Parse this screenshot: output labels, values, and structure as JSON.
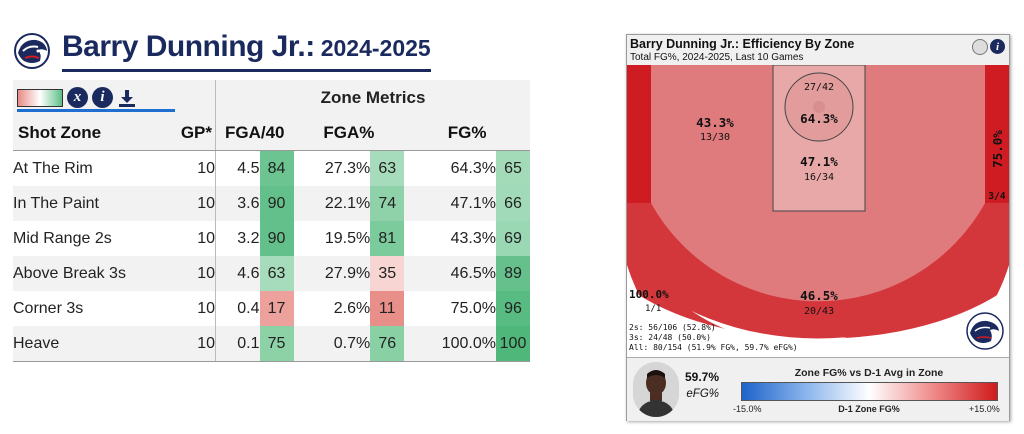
{
  "header": {
    "player_name": "Barry Dunning Jr.:",
    "season": "2024-2025"
  },
  "table": {
    "tools": {
      "stat_icon": "x",
      "info_icon": "i"
    },
    "zone_metrics_label": "Zone Metrics",
    "columns": {
      "zone": "Shot Zone",
      "gp": "GP*",
      "fga40": "FGA/40",
      "fgapct": "FGA%",
      "fgpct": "FG%"
    },
    "rows": [
      {
        "zone": "At The Rim",
        "gp": "10",
        "fga40": "4.5",
        "fga40_pct": "84",
        "fgapct": "27.3%",
        "fgapct_pct": "63",
        "fgpct": "64.3%",
        "fgpct_pct": "65",
        "c1": "#6cc491",
        "c2": "#a6dcbb",
        "c3": "#a3dbb9"
      },
      {
        "zone": "In The Paint",
        "gp": "10",
        "fga40": "3.6",
        "fga40_pct": "90",
        "fgapct": "22.1%",
        "fgapct_pct": "74",
        "fgpct": "47.1%",
        "fgpct_pct": "66",
        "c1": "#64c08b",
        "c2": "#8fd2a9",
        "c3": "#a1dab8"
      },
      {
        "zone": "Mid Range 2s",
        "gp": "10",
        "fga40": "3.2",
        "fga40_pct": "90",
        "fgapct": "19.5%",
        "fgapct_pct": "81",
        "fgpct": "43.3%",
        "fgpct_pct": "69",
        "c1": "#64c08b",
        "c2": "#7ccb9c",
        "c3": "#9ad7b3"
      },
      {
        "zone": "Above Break 3s",
        "gp": "10",
        "fga40": "4.6",
        "fga40_pct": "63",
        "fgapct": "27.9%",
        "fgapct_pct": "35",
        "fgpct": "46.5%",
        "fgpct_pct": "89",
        "c1": "#a6dcbb",
        "c2": "#f6d5d3",
        "c3": "#66c08c"
      },
      {
        "zone": "Corner 3s",
        "gp": "10",
        "fga40": "0.4",
        "fga40_pct": "17",
        "fgapct": "2.6%",
        "fgapct_pct": "11",
        "fgpct": "75.0%",
        "fgpct_pct": "96",
        "c1": "#eca19c",
        "c2": "#e98f89",
        "c3": "#58bb82"
      },
      {
        "zone": "Heave",
        "gp": "10",
        "fga40": "0.1",
        "fga40_pct": "75",
        "fgapct": "0.7%",
        "fgapct_pct": "76",
        "fgpct": "100.0%",
        "fgpct_pct": "100",
        "c1": "#8dd1a7",
        "c2": "#8ad0a5",
        "c3": "#4fb77a"
      }
    ]
  },
  "chart": {
    "title": "Barry Dunning Jr.: Efficiency By Zone",
    "subtitle": "Total FG%, 2024-2025, Last 10 Games",
    "zones": {
      "rim": {
        "pct": "64.3%",
        "made_att": "27/42",
        "color": "#e39c9c"
      },
      "paint": {
        "pct": "47.1%",
        "made_att": "16/34",
        "color": "#e8a8a8"
      },
      "mid": {
        "pct": "43.3%",
        "made_att": "13/30",
        "color": "#e07b7d"
      },
      "above_break_3": {
        "pct": "46.5%",
        "made_att": "20/43",
        "color": "#d4373b"
      },
      "corner_3": {
        "pct": "75.0%",
        "made_att": "3/4",
        "color": "#cf1b22"
      },
      "heave": {
        "pct": "100.0%",
        "made_att": "1/1",
        "color": "#ffffff"
      }
    },
    "summary": {
      "twos": "2s: 56/106 (52.8%)",
      "threes": "3s: 24/48 (50.0%)",
      "all": "All: 80/154 (51.9% FG%, 59.7% eFG%)"
    },
    "efg_value": "59.7%",
    "efg_label": "eFG%",
    "scale": {
      "title": "Zone FG% vs D-1 Avg in Zone",
      "min": "-15.0%",
      "mid": "D-1 Zone FG%",
      "max": "+15.0%"
    }
  },
  "colors": {
    "navy": "#1a2a5e",
    "accent_blue": "#1f6fd1"
  }
}
